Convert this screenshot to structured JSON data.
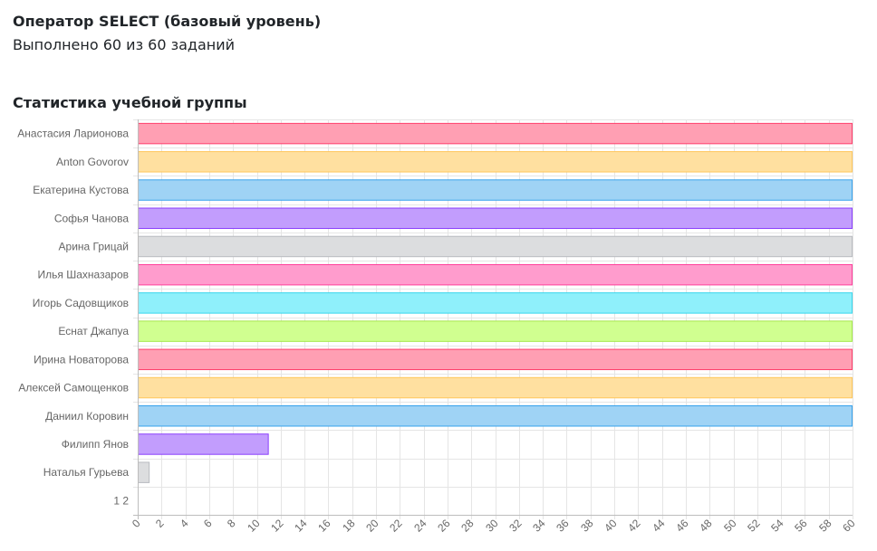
{
  "header": {
    "title": "Оператор SELECT (базовый уровень)",
    "progress_text": "Выполнено 60 из 60 заданий"
  },
  "section": {
    "title": "Статистика учебной группы"
  },
  "chart_data": {
    "type": "bar",
    "orientation": "horizontal",
    "categories": [
      "Анастасия Ларионова",
      "Anton Govorov",
      "Екатерина Кустова",
      "Софья Чанова",
      "Арина Грицай",
      "Илья Шахназаров",
      "Игорь Садовщиков",
      "Еснат Джапуа",
      "Ирина Новаторова",
      "Алексей Самощенков",
      "Даниил Коровин",
      "Филипп Янов",
      "Наталья Гурьева",
      "1 2"
    ],
    "values": [
      60,
      60,
      60,
      60,
      60,
      60,
      60,
      60,
      60,
      60,
      60,
      11,
      1,
      0
    ],
    "xlim": [
      0,
      60
    ],
    "xticks": [
      0,
      2,
      4,
      6,
      8,
      10,
      12,
      14,
      16,
      18,
      20,
      22,
      24,
      26,
      28,
      30,
      32,
      34,
      36,
      38,
      40,
      42,
      44,
      46,
      48,
      50,
      52,
      54,
      56,
      58,
      60
    ],
    "grid": true,
    "legend": "none",
    "colors": [
      {
        "fill": "#ff9fb3",
        "stroke": "#ff3d6b"
      },
      {
        "fill": "#ffe0a0",
        "stroke": "#ffc65a"
      },
      {
        "fill": "#9fd3f5",
        "stroke": "#36a2eb"
      },
      {
        "fill": "#c29dfd",
        "stroke": "#8a3ffc"
      },
      {
        "fill": "#dcdddf",
        "stroke": "#b9bbc0"
      },
      {
        "fill": "#ff9ccd",
        "stroke": "#ff3d9a"
      },
      {
        "fill": "#8ff0fb",
        "stroke": "#38d6ec"
      },
      {
        "fill": "#d0ff90",
        "stroke": "#a4e84a"
      },
      {
        "fill": "#ff9fb3",
        "stroke": "#ff3d6b"
      },
      {
        "fill": "#ffe0a0",
        "stroke": "#ffc65a"
      },
      {
        "fill": "#9fd3f5",
        "stroke": "#36a2eb"
      },
      {
        "fill": "#c29dfd",
        "stroke": "#8a3ffc"
      },
      {
        "fill": "#dcdddf",
        "stroke": "#b9bbc0"
      },
      {
        "fill": "#ff9ccd",
        "stroke": "#ff3d9a"
      }
    ]
  }
}
